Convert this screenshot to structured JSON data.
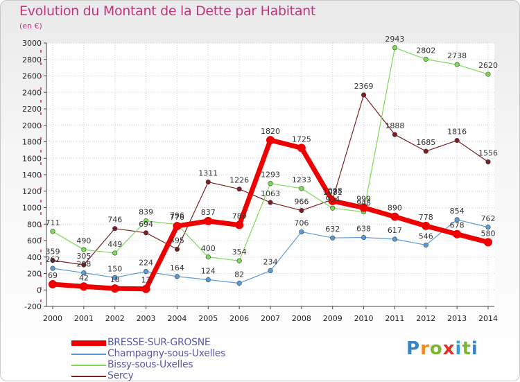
{
  "title": "Evolution du Montant de la Dette par Habitant",
  "unit": "(en €)",
  "brand": {
    "text": "Proxiti",
    "colors": [
      "#3b82c4",
      "#f08a1c",
      "#7cb82f",
      "#e2302a",
      "#2c9fd8",
      "#7cb82f",
      "#3b82c4"
    ]
  },
  "chart_data": {
    "type": "line",
    "title": "Evolution du Montant de la Dette par Habitant",
    "ylabel": "(en €)",
    "xlabel": "",
    "x": [
      "2000",
      "2001",
      "2002",
      "2003",
      "2004",
      "2005",
      "2006",
      "2007",
      "2008",
      "2009",
      "2010",
      "2011",
      "2012",
      "2013",
      "2014"
    ],
    "ylim": [
      -200,
      3000
    ],
    "yticks": [
      -200,
      0,
      200,
      400,
      600,
      800,
      1000,
      1200,
      1400,
      1600,
      1800,
      2000,
      2200,
      2400,
      2600,
      2800,
      3000
    ],
    "grid": true,
    "legend_position": "bottom-left",
    "series": [
      {
        "name": "BRESSE-SUR-GROSNE",
        "color": "#ee0000",
        "values": [
          69,
          42,
          18,
          13,
          776,
          837,
          789,
          1820,
          1725,
          1081,
          999,
          890,
          778,
          678,
          580
        ]
      },
      {
        "name": "Champagny-sous-Uxelles",
        "color": "#5b9bd5",
        "values": [
          262,
          208,
          150,
          224,
          164,
          124,
          82,
          234,
          706,
          632,
          638,
          617,
          546,
          854,
          762
        ]
      },
      {
        "name": "Bissy-sous-Uxelles",
        "color": "#7ed957",
        "values": [
          711,
          490,
          449,
          839,
          796,
          400,
          354,
          1293,
          1233,
          994,
          948,
          2943,
          2802,
          2738,
          2620
        ]
      },
      {
        "name": "Sercy",
        "color": "#7a1e22",
        "values": [
          359,
          305,
          746,
          694,
          495,
          1311,
          1226,
          1063,
          966,
          1098,
          2369,
          1888,
          1685,
          1816,
          1556
        ]
      }
    ]
  }
}
